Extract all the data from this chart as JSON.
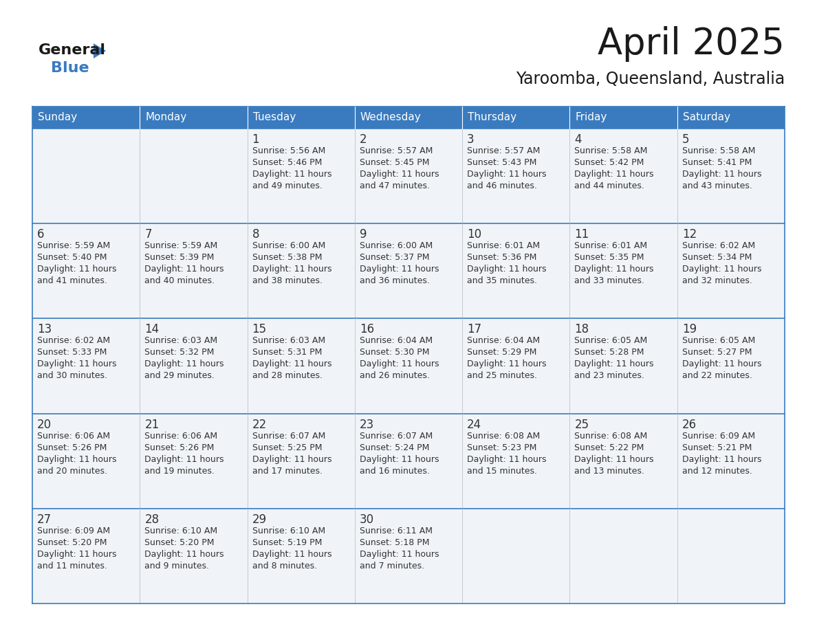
{
  "title": "April 2025",
  "subtitle": "Yaroomba, Queensland, Australia",
  "days_of_week": [
    "Sunday",
    "Monday",
    "Tuesday",
    "Wednesday",
    "Thursday",
    "Friday",
    "Saturday"
  ],
  "header_bg": "#3a7bbf",
  "header_text": "#ffffff",
  "row_bg_light": "#f0f4f8",
  "cell_border_color": "#3a7bbf",
  "cell_divider_color": "#c0c8d0",
  "text_color": "#333333",
  "title_color": "#1a1a1a",
  "logo_triangle_color": "#3a7bbf",
  "weeks": [
    [
      {
        "day": "",
        "sunrise": "",
        "sunset": "",
        "daylight": ""
      },
      {
        "day": "",
        "sunrise": "",
        "sunset": "",
        "daylight": ""
      },
      {
        "day": "1",
        "sunrise": "Sunrise: 5:56 AM",
        "sunset": "Sunset: 5:46 PM",
        "daylight": "Daylight: 11 hours\nand 49 minutes."
      },
      {
        "day": "2",
        "sunrise": "Sunrise: 5:57 AM",
        "sunset": "Sunset: 5:45 PM",
        "daylight": "Daylight: 11 hours\nand 47 minutes."
      },
      {
        "day": "3",
        "sunrise": "Sunrise: 5:57 AM",
        "sunset": "Sunset: 5:43 PM",
        "daylight": "Daylight: 11 hours\nand 46 minutes."
      },
      {
        "day": "4",
        "sunrise": "Sunrise: 5:58 AM",
        "sunset": "Sunset: 5:42 PM",
        "daylight": "Daylight: 11 hours\nand 44 minutes."
      },
      {
        "day": "5",
        "sunrise": "Sunrise: 5:58 AM",
        "sunset": "Sunset: 5:41 PM",
        "daylight": "Daylight: 11 hours\nand 43 minutes."
      }
    ],
    [
      {
        "day": "6",
        "sunrise": "Sunrise: 5:59 AM",
        "sunset": "Sunset: 5:40 PM",
        "daylight": "Daylight: 11 hours\nand 41 minutes."
      },
      {
        "day": "7",
        "sunrise": "Sunrise: 5:59 AM",
        "sunset": "Sunset: 5:39 PM",
        "daylight": "Daylight: 11 hours\nand 40 minutes."
      },
      {
        "day": "8",
        "sunrise": "Sunrise: 6:00 AM",
        "sunset": "Sunset: 5:38 PM",
        "daylight": "Daylight: 11 hours\nand 38 minutes."
      },
      {
        "day": "9",
        "sunrise": "Sunrise: 6:00 AM",
        "sunset": "Sunset: 5:37 PM",
        "daylight": "Daylight: 11 hours\nand 36 minutes."
      },
      {
        "day": "10",
        "sunrise": "Sunrise: 6:01 AM",
        "sunset": "Sunset: 5:36 PM",
        "daylight": "Daylight: 11 hours\nand 35 minutes."
      },
      {
        "day": "11",
        "sunrise": "Sunrise: 6:01 AM",
        "sunset": "Sunset: 5:35 PM",
        "daylight": "Daylight: 11 hours\nand 33 minutes."
      },
      {
        "day": "12",
        "sunrise": "Sunrise: 6:02 AM",
        "sunset": "Sunset: 5:34 PM",
        "daylight": "Daylight: 11 hours\nand 32 minutes."
      }
    ],
    [
      {
        "day": "13",
        "sunrise": "Sunrise: 6:02 AM",
        "sunset": "Sunset: 5:33 PM",
        "daylight": "Daylight: 11 hours\nand 30 minutes."
      },
      {
        "day": "14",
        "sunrise": "Sunrise: 6:03 AM",
        "sunset": "Sunset: 5:32 PM",
        "daylight": "Daylight: 11 hours\nand 29 minutes."
      },
      {
        "day": "15",
        "sunrise": "Sunrise: 6:03 AM",
        "sunset": "Sunset: 5:31 PM",
        "daylight": "Daylight: 11 hours\nand 28 minutes."
      },
      {
        "day": "16",
        "sunrise": "Sunrise: 6:04 AM",
        "sunset": "Sunset: 5:30 PM",
        "daylight": "Daylight: 11 hours\nand 26 minutes."
      },
      {
        "day": "17",
        "sunrise": "Sunrise: 6:04 AM",
        "sunset": "Sunset: 5:29 PM",
        "daylight": "Daylight: 11 hours\nand 25 minutes."
      },
      {
        "day": "18",
        "sunrise": "Sunrise: 6:05 AM",
        "sunset": "Sunset: 5:28 PM",
        "daylight": "Daylight: 11 hours\nand 23 minutes."
      },
      {
        "day": "19",
        "sunrise": "Sunrise: 6:05 AM",
        "sunset": "Sunset: 5:27 PM",
        "daylight": "Daylight: 11 hours\nand 22 minutes."
      }
    ],
    [
      {
        "day": "20",
        "sunrise": "Sunrise: 6:06 AM",
        "sunset": "Sunset: 5:26 PM",
        "daylight": "Daylight: 11 hours\nand 20 minutes."
      },
      {
        "day": "21",
        "sunrise": "Sunrise: 6:06 AM",
        "sunset": "Sunset: 5:26 PM",
        "daylight": "Daylight: 11 hours\nand 19 minutes."
      },
      {
        "day": "22",
        "sunrise": "Sunrise: 6:07 AM",
        "sunset": "Sunset: 5:25 PM",
        "daylight": "Daylight: 11 hours\nand 17 minutes."
      },
      {
        "day": "23",
        "sunrise": "Sunrise: 6:07 AM",
        "sunset": "Sunset: 5:24 PM",
        "daylight": "Daylight: 11 hours\nand 16 minutes."
      },
      {
        "day": "24",
        "sunrise": "Sunrise: 6:08 AM",
        "sunset": "Sunset: 5:23 PM",
        "daylight": "Daylight: 11 hours\nand 15 minutes."
      },
      {
        "day": "25",
        "sunrise": "Sunrise: 6:08 AM",
        "sunset": "Sunset: 5:22 PM",
        "daylight": "Daylight: 11 hours\nand 13 minutes."
      },
      {
        "day": "26",
        "sunrise": "Sunrise: 6:09 AM",
        "sunset": "Sunset: 5:21 PM",
        "daylight": "Daylight: 11 hours\nand 12 minutes."
      }
    ],
    [
      {
        "day": "27",
        "sunrise": "Sunrise: 6:09 AM",
        "sunset": "Sunset: 5:20 PM",
        "daylight": "Daylight: 11 hours\nand 11 minutes."
      },
      {
        "day": "28",
        "sunrise": "Sunrise: 6:10 AM",
        "sunset": "Sunset: 5:20 PM",
        "daylight": "Daylight: 11 hours\nand 9 minutes."
      },
      {
        "day": "29",
        "sunrise": "Sunrise: 6:10 AM",
        "sunset": "Sunset: 5:19 PM",
        "daylight": "Daylight: 11 hours\nand 8 minutes."
      },
      {
        "day": "30",
        "sunrise": "Sunrise: 6:11 AM",
        "sunset": "Sunset: 5:18 PM",
        "daylight": "Daylight: 11 hours\nand 7 minutes."
      },
      {
        "day": "",
        "sunrise": "",
        "sunset": "",
        "daylight": ""
      },
      {
        "day": "",
        "sunrise": "",
        "sunset": "",
        "daylight": ""
      },
      {
        "day": "",
        "sunrise": "",
        "sunset": "",
        "daylight": ""
      }
    ]
  ]
}
